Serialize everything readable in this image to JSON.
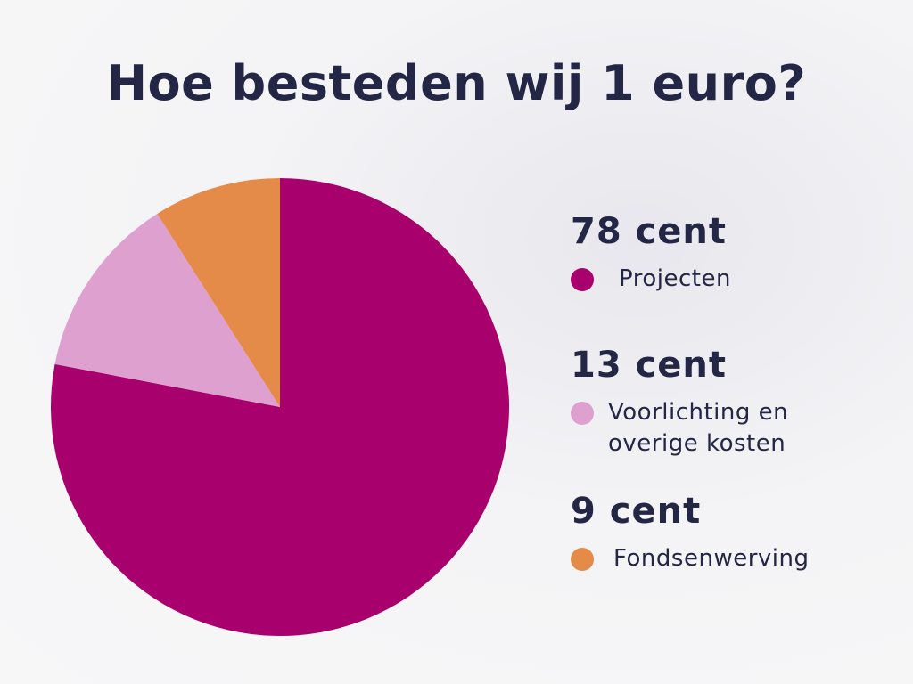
{
  "title": "Hoe besteden wij 1 euro?",
  "colors": {
    "projecten": "#a8006d",
    "voorlichting": "#dea1cf",
    "fondsenwerving": "#e48b4a",
    "text": "#232645"
  },
  "legend": [
    {
      "value": "78 cent",
      "label": "Projecten",
      "color": "#a8006d"
    },
    {
      "value": "13 cent",
      "label": "Voorlichting en\noverige kosten",
      "color": "#dea1cf"
    },
    {
      "value": "9 cent",
      "label": "Fondsenwerving",
      "color": "#e48b4a"
    }
  ],
  "chart_data": {
    "type": "pie",
    "title": "Hoe besteden wij 1 euro?",
    "categories": [
      "Projecten",
      "Voorlichting en overige kosten",
      "Fondsenwerving"
    ],
    "values": [
      78,
      13,
      9
    ],
    "unit": "cent",
    "colors": [
      "#a8006d",
      "#dea1cf",
      "#e48b4a"
    ],
    "legend_position": "right"
  }
}
